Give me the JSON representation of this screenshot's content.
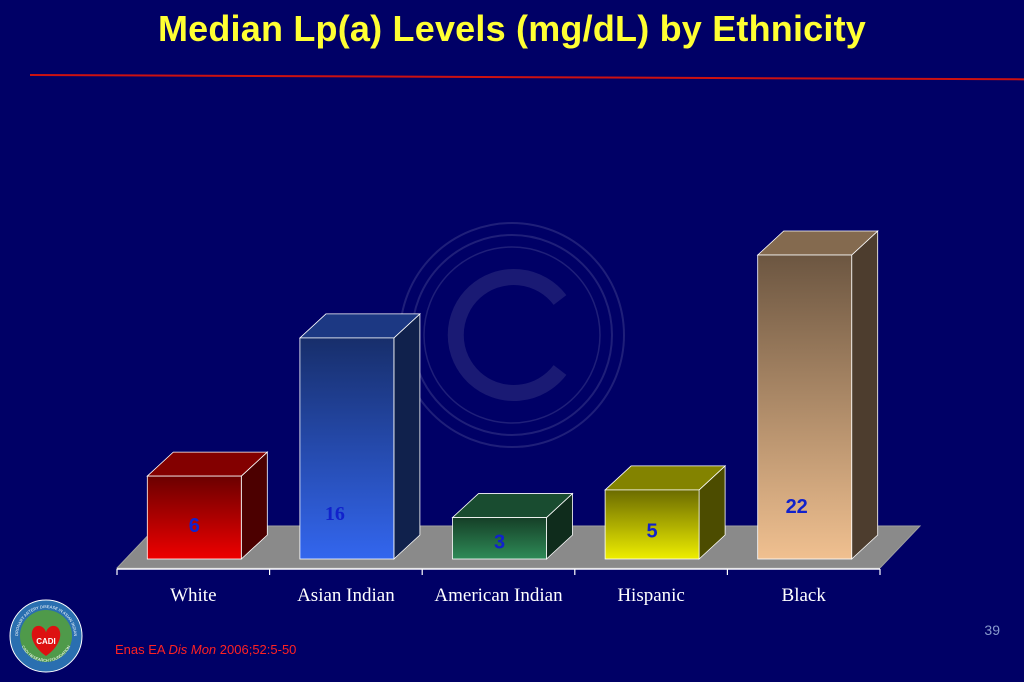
{
  "title": "Median Lp(a) Levels (mg/dL) by Ethnicity",
  "slide_number": "39",
  "citation": {
    "author": "Enas EA ",
    "journal": "Dis Mon",
    "ref": " 2006;52:5-50"
  },
  "logo": {
    "top_text": "CORONARY ARTERY DISEASE IN ASIAN INDIANS",
    "center_text": "CADI",
    "bottom_text": "CADI RESEARCH FOUNDATION"
  },
  "watermark_icon": "copyright-icon",
  "chart_data": {
    "type": "bar",
    "categories": [
      "White",
      "Asian Indian",
      "American Indian",
      "Hispanic",
      "Black"
    ],
    "values": [
      6,
      16,
      3,
      5,
      22
    ],
    "data_labels": [
      "6",
      "16",
      "3",
      "5",
      "22"
    ],
    "colors": [
      "#ee0000",
      "#3366ee",
      "#2e8b57",
      "#eeee00",
      "#f0c090"
    ],
    "label_colors": [
      "#1122cc",
      "#1122cc",
      "#1122cc",
      "#1122cc",
      "#1122cc"
    ],
    "ylim": [
      0,
      22
    ],
    "xlabel": "",
    "ylabel": "",
    "grid": false,
    "legend": "none"
  }
}
